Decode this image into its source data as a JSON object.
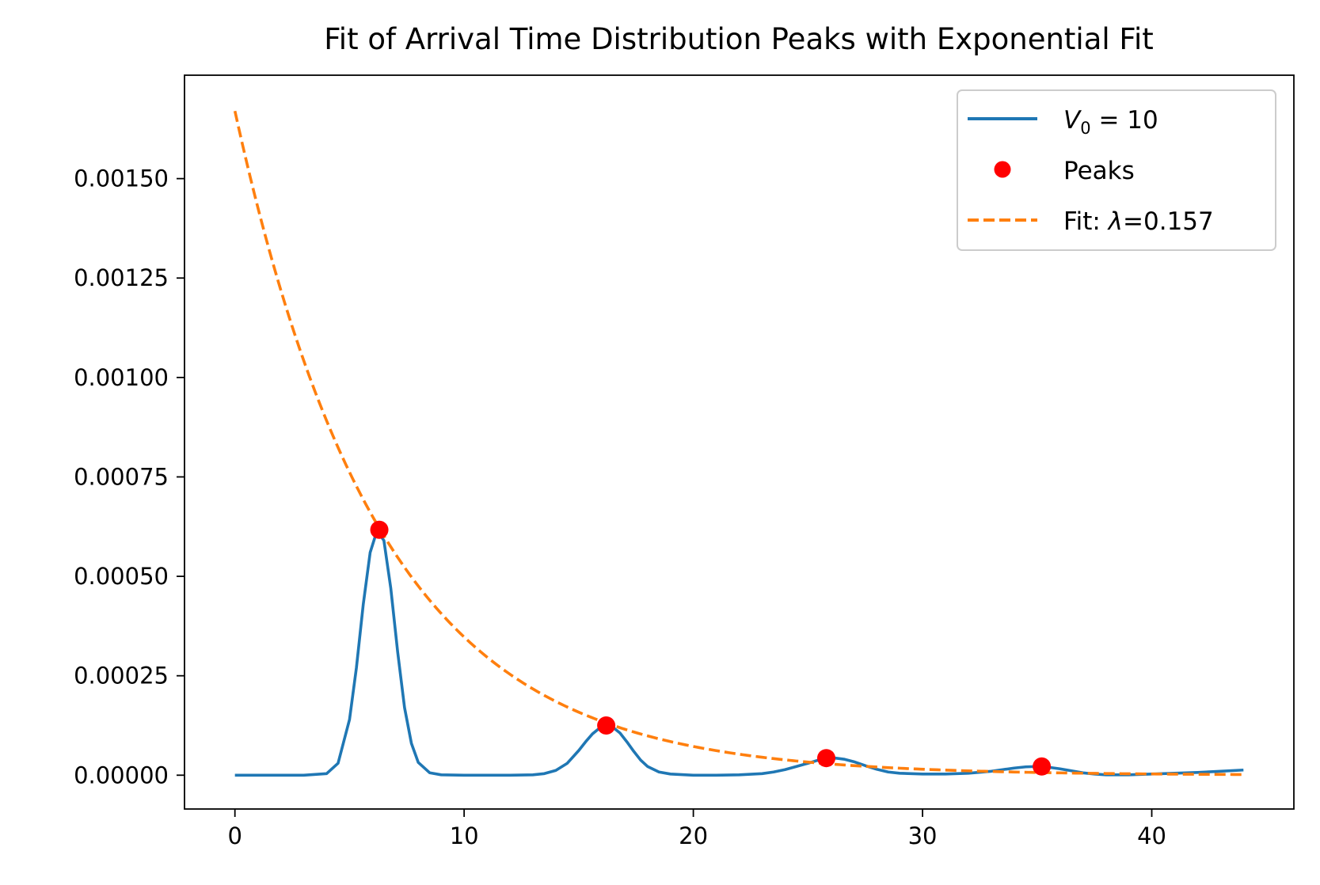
{
  "chart_data": {
    "type": "line",
    "title": "Fit of Arrival Time Distribution Peaks with Exponential Fit",
    "xlabel": "",
    "ylabel": "",
    "xlim": [
      -2.2,
      46.2
    ],
    "ylim": [
      -8.5e-05,
      0.00176
    ],
    "x_ticks": [
      0,
      10,
      20,
      30,
      40
    ],
    "x_tick_labels": [
      "0",
      "10",
      "20",
      "30",
      "40"
    ],
    "y_ticks": [
      0,
      0.00025,
      0.0005,
      0.00075,
      0.001,
      0.00125,
      0.0015
    ],
    "y_tick_labels": [
      "0.00000",
      "0.00025",
      "0.00050",
      "0.00075",
      "0.00100",
      "0.00125",
      "0.00150"
    ],
    "grid": false,
    "legend_position": "top-right",
    "colors": {
      "signal": "#1f77b4",
      "peaks": "#ff0000",
      "fit": "#ff7f0e"
    },
    "series": [
      {
        "name": "V0 = 10",
        "legend_main": "V",
        "legend_sub": "0",
        "legend_rest": " = 10",
        "style": "solid",
        "x": [
          0,
          2,
          3,
          4,
          4.5,
          5,
          5.3,
          5.6,
          5.9,
          6.2,
          6.5,
          6.8,
          7.1,
          7.4,
          7.7,
          8,
          8.5,
          9,
          10,
          11,
          12,
          13,
          13.5,
          14,
          14.5,
          15,
          15.3,
          15.6,
          15.9,
          16.2,
          16.5,
          16.8,
          17.1,
          17.4,
          17.7,
          18,
          18.5,
          19,
          20,
          21,
          22,
          23,
          23.5,
          24,
          24.5,
          25,
          25.4,
          25.8,
          26.2,
          26.6,
          27,
          27.5,
          28,
          28.5,
          29,
          30,
          31,
          32,
          33,
          33.5,
          34,
          34.5,
          35,
          35.5,
          36,
          36.5,
          37,
          37.5,
          38,
          38.5,
          39,
          40,
          41,
          42,
          43,
          44
        ],
        "y": [
          0,
          0,
          0,
          4e-06,
          3e-05,
          0.00014,
          0.00027,
          0.00043,
          0.00056,
          0.000615,
          0.00059,
          0.00047,
          0.00031,
          0.00017,
          8e-05,
          3.2e-05,
          6e-06,
          1e-06,
          0,
          0,
          0,
          1e-06,
          4e-06,
          1.2e-05,
          3e-05,
          6.2e-05,
          8.4e-05,
          0.000104,
          0.000118,
          0.000124,
          0.00012,
          0.000106,
          8.4e-05,
          6e-05,
          3.8e-05,
          2.2e-05,
          8e-06,
          3e-06,
          0,
          0,
          1e-06,
          4e-06,
          8e-06,
          1.4e-05,
          2.2e-05,
          3e-05,
          3.7e-05,
          4.1e-05,
          4.3e-05,
          4e-05,
          3.4e-05,
          2.4e-05,
          1.5e-05,
          8e-06,
          5e-06,
          3e-06,
          3e-06,
          5e-06,
          1e-05,
          1.4e-05,
          1.8e-05,
          2.1e-05,
          2.2e-05,
          2e-05,
          1.6e-05,
          1.1e-05,
          6e-06,
          3e-06,
          1e-06,
          1e-06,
          1e-06,
          3e-06,
          5e-06,
          7e-06,
          1e-05,
          1.3e-05
        ]
      },
      {
        "name": "Peaks",
        "style": "markers",
        "x": [
          6.3,
          16.2,
          25.8,
          35.2
        ],
        "y": [
          0.000617,
          0.000125,
          4.3e-05,
          2.2e-05
        ]
      },
      {
        "name": "Fit: λ=0.157",
        "legend_prefix": "Fit: ",
        "legend_symbol": "λ",
        "legend_value": "=0.157",
        "style": "dashed",
        "function": "0.00167 * exp(-0.157 * x)",
        "x_range": [
          0,
          44
        ]
      }
    ]
  }
}
